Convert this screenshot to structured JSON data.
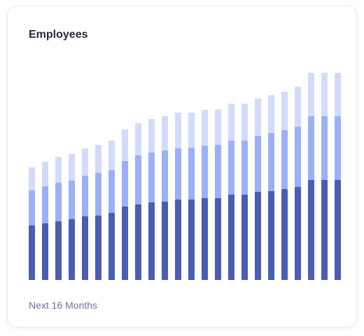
{
  "chart_data": {
    "type": "stacked-bar",
    "title": "Employees",
    "footer": "Next 16 Months",
    "categories": [
      null,
      null,
      null,
      null,
      null,
      null,
      null,
      null,
      null,
      null,
      null,
      null,
      null,
      null,
      null,
      null,
      null,
      null,
      null,
      null,
      null,
      null,
      null,
      null
    ],
    "series": [
      {
        "color": "#4a5db3",
        "values": [
          78,
          81,
          84,
          87,
          91,
          92,
          96,
          105,
          108,
          111,
          112,
          115,
          115,
          117,
          117,
          122,
          122,
          126,
          127,
          130,
          133,
          143,
          143,
          143
        ]
      },
      {
        "color": "#9bb0f6",
        "values": [
          50,
          53,
          55,
          55,
          58,
          61,
          61,
          65,
          70,
          71,
          73,
          73,
          74,
          75,
          76,
          77,
          77,
          80,
          83,
          84,
          86,
          91,
          91,
          91
        ]
      },
      {
        "color": "#d2dbfa",
        "values": [
          33,
          35,
          37,
          38,
          39,
          40,
          42,
          45,
          46,
          48,
          49,
          51,
          50,
          51,
          51,
          53,
          53,
          53,
          54,
          55,
          57,
          62,
          62,
          62
        ]
      }
    ],
    "ylim": [
      0,
      296
    ],
    "grid": false
  }
}
